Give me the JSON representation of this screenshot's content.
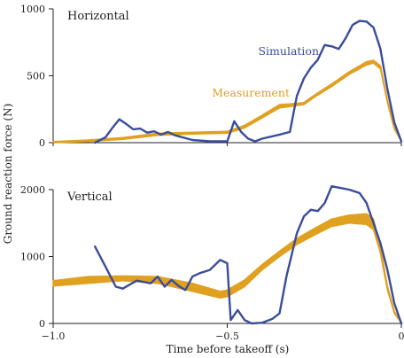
{
  "chart_data": {
    "type": "line",
    "xlabel": "Time before takeoff (s)",
    "ylabel": "Ground reaction force (N)",
    "xlim": [
      -1.0,
      0
    ],
    "x_ticks": [
      -1.0,
      -0.5,
      0
    ],
    "x_tick_labels": [
      "−1.0",
      "−0.5",
      "0"
    ],
    "colors": {
      "simulation": "#3a4d9a",
      "measurement": "#e0a020"
    },
    "panels": [
      {
        "title": "Horizontal",
        "ylim": [
          0,
          1000
        ],
        "y_ticks": [
          0,
          500,
          1000
        ],
        "y_tick_labels": [
          "0",
          "500",
          "1000"
        ],
        "series": [
          {
            "name": "Measurement",
            "style": "band",
            "x": [
              -1.0,
              -0.9,
              -0.8,
              -0.7,
              -0.6,
              -0.5,
              -0.45,
              -0.4,
              -0.35,
              -0.32,
              -0.28,
              -0.25,
              -0.2,
              -0.15,
              -0.1,
              -0.08,
              -0.06,
              -0.04,
              -0.02,
              0
            ],
            "lower": [
              0,
              8,
              25,
              55,
              65,
              70,
              110,
              185,
              260,
              270,
              285,
              340,
              420,
              510,
              580,
              595,
              550,
              300,
              100,
              10
            ],
            "upper": [
              8,
              20,
              38,
              70,
              78,
              85,
              130,
              205,
              285,
              290,
              300,
              355,
              440,
              530,
              605,
              615,
              575,
              320,
              110,
              15
            ]
          },
          {
            "name": "Simulation",
            "style": "line",
            "x": [
              -0.88,
              -0.85,
              -0.83,
              -0.81,
              -0.79,
              -0.77,
              -0.75,
              -0.73,
              -0.71,
              -0.69,
              -0.67,
              -0.65,
              -0.6,
              -0.55,
              -0.5,
              -0.48,
              -0.46,
              -0.44,
              -0.42,
              -0.4,
              -0.35,
              -0.32,
              -0.3,
              -0.28,
              -0.26,
              -0.24,
              -0.22,
              -0.2,
              -0.18,
              -0.16,
              -0.14,
              -0.12,
              -0.1,
              -0.08,
              -0.06,
              -0.04,
              -0.02,
              0
            ],
            "y": [
              0,
              40,
              110,
              175,
              140,
              100,
              105,
              75,
              85,
              60,
              80,
              55,
              20,
              10,
              10,
              160,
              80,
              30,
              10,
              30,
              60,
              80,
              350,
              480,
              560,
              620,
              730,
              720,
              700,
              780,
              880,
              910,
              905,
              860,
              700,
              400,
              150,
              10
            ]
          }
        ],
        "annotations": [
          {
            "text": "Simulation",
            "series": "Simulation"
          },
          {
            "text": "Measurement",
            "series": "Measurement"
          }
        ]
      },
      {
        "title": "Vertical",
        "ylim": [
          0,
          2000
        ],
        "y_ticks": [
          0,
          1000,
          2000
        ],
        "y_tick_labels": [
          "0",
          "1000",
          "2000"
        ],
        "series": [
          {
            "name": "Measurement",
            "style": "band",
            "x": [
              -1.0,
              -0.9,
              -0.8,
              -0.7,
              -0.6,
              -0.52,
              -0.5,
              -0.45,
              -0.4,
              -0.35,
              -0.3,
              -0.25,
              -0.2,
              -0.15,
              -0.1,
              -0.08,
              -0.06,
              -0.04,
              -0.02,
              0
            ],
            "lower": [
              560,
              600,
              640,
              600,
              480,
              380,
              400,
              550,
              800,
              1000,
              1180,
              1320,
              1450,
              1500,
              1480,
              1400,
              1050,
              500,
              150,
              10
            ],
            "upper": [
              640,
              700,
              710,
              700,
              600,
              480,
              500,
              650,
              880,
              1080,
              1270,
              1420,
              1560,
              1620,
              1640,
              1560,
              1150,
              560,
              180,
              20
            ]
          },
          {
            "name": "Simulation",
            "style": "line",
            "x": [
              -0.88,
              -0.85,
              -0.82,
              -0.8,
              -0.76,
              -0.72,
              -0.7,
              -0.68,
              -0.66,
              -0.64,
              -0.62,
              -0.6,
              -0.58,
              -0.55,
              -0.52,
              -0.5,
              -0.49,
              -0.47,
              -0.45,
              -0.43,
              -0.4,
              -0.37,
              -0.35,
              -0.33,
              -0.3,
              -0.28,
              -0.26,
              -0.24,
              -0.22,
              -0.2,
              -0.15,
              -0.12,
              -0.1,
              -0.08,
              -0.06,
              -0.04,
              -0.02,
              0
            ],
            "y": [
              1150,
              850,
              550,
              520,
              640,
              600,
              700,
              550,
              650,
              560,
              500,
              700,
              750,
              800,
              950,
              900,
              50,
              200,
              50,
              0,
              10,
              70,
              150,
              700,
              1350,
              1600,
              1700,
              1680,
              1800,
              2050,
              2000,
              1950,
              1800,
              1500,
              1200,
              800,
              300,
              0
            ]
          }
        ]
      }
    ]
  }
}
